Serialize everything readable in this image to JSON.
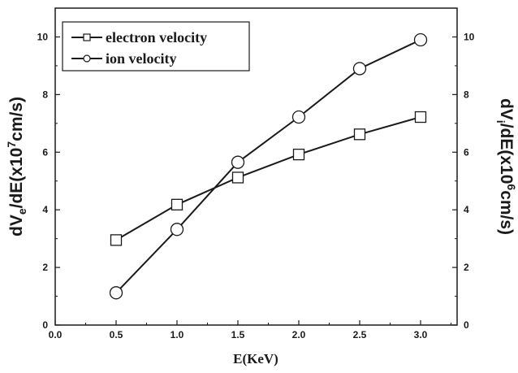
{
  "chart_data": {
    "type": "line",
    "x": [
      0.5,
      1.0,
      1.5,
      2.0,
      2.5,
      3.0
    ],
    "xlabel": "E(KeV)",
    "xlim": [
      0.0,
      3.3
    ],
    "xticks": [
      "0.0",
      "0.5",
      "1.0",
      "1.5",
      "2.0",
      "2.5",
      "3.0"
    ],
    "ylabel_left": {
      "main": "dV",
      "sub": "e",
      "mid": "/dE(x10",
      "sup": "7",
      "end": "cm/s)"
    },
    "ylabel_right": {
      "main": "dV",
      "sub": "i",
      "mid": "/dE(x10",
      "sup": "6",
      "end": "cm/s)"
    },
    "ylim": [
      0,
      11
    ],
    "yticks": [
      "0",
      "2",
      "4",
      "6",
      "8",
      "10"
    ],
    "series": [
      {
        "name": "electron velocity",
        "marker": "square",
        "axis": "left",
        "values": [
          2.95,
          4.18,
          5.12,
          5.92,
          6.62,
          7.22
        ]
      },
      {
        "name": "ion velocity",
        "marker": "circle",
        "axis": "right",
        "values": [
          1.12,
          3.32,
          5.65,
          7.22,
          8.9,
          9.9
        ]
      }
    ],
    "legend_position": "top-left",
    "grid": false
  }
}
